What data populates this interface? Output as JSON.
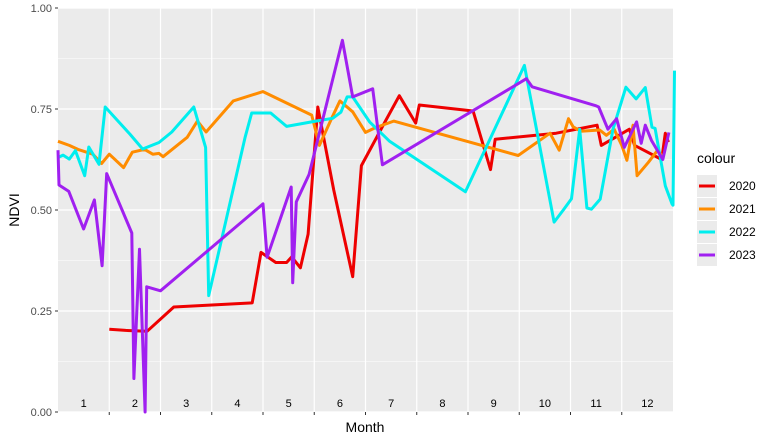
{
  "chart_data": {
    "type": "line",
    "xlabel": "Month",
    "ylabel": "NDVI",
    "legend_title": "colour",
    "legend_position": "right",
    "grid": true,
    "xlim": [
      0.5,
      12.5
    ],
    "ylim": [
      0,
      1
    ],
    "y_ticks": [
      "0.00",
      "0.25",
      "0.50",
      "0.75",
      "1.00"
    ],
    "y_tick_values": [
      0,
      0.25,
      0.5,
      0.75,
      1.0
    ],
    "month_labels": [
      "1",
      "2",
      "3",
      "4",
      "5",
      "6",
      "7",
      "8",
      "9",
      "10",
      "11",
      "12"
    ],
    "series": [
      {
        "name": "2020",
        "color": "#ee0000",
        "points": [
          [
            1.5,
            0.205
          ],
          [
            1.82,
            0.202
          ],
          [
            2.24,
            0.2
          ],
          [
            2.76,
            0.26
          ],
          [
            4.29,
            0.27
          ],
          [
            4.46,
            0.395
          ],
          [
            4.75,
            0.37
          ],
          [
            4.96,
            0.37
          ],
          [
            5.06,
            0.384
          ],
          [
            5.23,
            0.357
          ],
          [
            5.38,
            0.44
          ],
          [
            5.57,
            0.755
          ],
          [
            5.88,
            0.55
          ],
          [
            6.25,
            0.335
          ],
          [
            6.42,
            0.61
          ],
          [
            6.88,
            0.718
          ],
          [
            7.16,
            0.783
          ],
          [
            7.48,
            0.715
          ],
          [
            7.55,
            0.76
          ],
          [
            8.6,
            0.745
          ],
          [
            8.94,
            0.6
          ],
          [
            9.03,
            0.675
          ],
          [
            10.22,
            0.69
          ],
          [
            11.02,
            0.71
          ],
          [
            11.1,
            0.66
          ],
          [
            11.65,
            0.7
          ],
          [
            11.75,
            0.66
          ],
          [
            12.28,
            0.625
          ],
          [
            12.35,
            0.69
          ],
          [
            12.41,
            0.668
          ]
        ]
      },
      {
        "name": "2021",
        "color": "#ff8c00",
        "points": [
          [
            0.5,
            0.67
          ],
          [
            0.72,
            0.66
          ],
          [
            0.89,
            0.65
          ],
          [
            1.18,
            0.638
          ],
          [
            1.35,
            0.615
          ],
          [
            1.5,
            0.638
          ],
          [
            1.78,
            0.605
          ],
          [
            1.95,
            0.643
          ],
          [
            2.19,
            0.65
          ],
          [
            2.35,
            0.638
          ],
          [
            2.47,
            0.64
          ],
          [
            2.55,
            0.632
          ],
          [
            3.02,
            0.68
          ],
          [
            3.22,
            0.72
          ],
          [
            3.39,
            0.693
          ],
          [
            3.92,
            0.77
          ],
          [
            4.5,
            0.793
          ],
          [
            5.45,
            0.735
          ],
          [
            5.6,
            0.66
          ],
          [
            5.85,
            0.73
          ],
          [
            6.0,
            0.77
          ],
          [
            6.25,
            0.743
          ],
          [
            6.5,
            0.692
          ],
          [
            6.68,
            0.703
          ],
          [
            7.05,
            0.72
          ],
          [
            9.48,
            0.635
          ],
          [
            10.1,
            0.69
          ],
          [
            10.28,
            0.648
          ],
          [
            10.46,
            0.726
          ],
          [
            10.55,
            0.706
          ],
          [
            10.7,
            0.695
          ],
          [
            11.07,
            0.698
          ],
          [
            11.2,
            0.685
          ],
          [
            11.35,
            0.7
          ],
          [
            11.5,
            0.66
          ],
          [
            11.6,
            0.623
          ],
          [
            11.72,
            0.71
          ],
          [
            11.8,
            0.585
          ],
          [
            12.02,
            0.618
          ],
          [
            12.2,
            0.648
          ],
          [
            12.3,
            0.632
          ]
        ]
      },
      {
        "name": "2022",
        "color": "#00eeee",
        "points": [
          [
            0.5,
            0.63
          ],
          [
            0.6,
            0.636
          ],
          [
            0.72,
            0.626
          ],
          [
            0.84,
            0.647
          ],
          [
            1.02,
            0.585
          ],
          [
            1.1,
            0.656
          ],
          [
            1.3,
            0.613
          ],
          [
            1.42,
            0.755
          ],
          [
            1.9,
            0.688
          ],
          [
            2.15,
            0.651
          ],
          [
            2.47,
            0.667
          ],
          [
            2.72,
            0.693
          ],
          [
            3.15,
            0.755
          ],
          [
            3.38,
            0.655
          ],
          [
            3.44,
            0.288
          ],
          [
            4.15,
            0.68
          ],
          [
            4.28,
            0.74
          ],
          [
            4.65,
            0.74
          ],
          [
            4.96,
            0.707
          ],
          [
            5.53,
            0.72
          ],
          [
            5.86,
            0.727
          ],
          [
            6.02,
            0.742
          ],
          [
            6.14,
            0.78
          ],
          [
            6.25,
            0.78
          ],
          [
            6.58,
            0.718
          ],
          [
            6.97,
            0.67
          ],
          [
            8.45,
            0.545
          ],
          [
            9.6,
            0.858
          ],
          [
            10.18,
            0.47
          ],
          [
            10.36,
            0.5
          ],
          [
            10.52,
            0.528
          ],
          [
            10.68,
            0.7
          ],
          [
            10.82,
            0.505
          ],
          [
            10.91,
            0.502
          ],
          [
            11.08,
            0.527
          ],
          [
            11.33,
            0.7
          ],
          [
            11.58,
            0.804
          ],
          [
            11.78,
            0.775
          ],
          [
            11.96,
            0.803
          ],
          [
            12.09,
            0.705
          ],
          [
            12.15,
            0.702
          ],
          [
            12.35,
            0.56
          ],
          [
            12.48,
            0.515
          ],
          [
            12.5,
            0.512
          ],
          [
            12.53,
            0.845
          ]
        ]
      },
      {
        "name": "2023",
        "color": "#a020f0",
        "points": [
          [
            0.5,
            0.648
          ],
          [
            0.52,
            0.562
          ],
          [
            0.71,
            0.546
          ],
          [
            1.0,
            0.453
          ],
          [
            1.21,
            0.525
          ],
          [
            1.36,
            0.362
          ],
          [
            1.45,
            0.59
          ],
          [
            1.94,
            0.443
          ],
          [
            1.98,
            0.083
          ],
          [
            2.09,
            0.403
          ],
          [
            2.2,
            0.0
          ],
          [
            2.23,
            0.31
          ],
          [
            2.5,
            0.3
          ],
          [
            4.5,
            0.515
          ],
          [
            4.58,
            0.383
          ],
          [
            5.05,
            0.557
          ],
          [
            5.08,
            0.32
          ],
          [
            5.15,
            0.52
          ],
          [
            5.4,
            0.588
          ],
          [
            6.05,
            0.92
          ],
          [
            6.25,
            0.78
          ],
          [
            6.64,
            0.8
          ],
          [
            6.83,
            0.612
          ],
          [
            9.64,
            0.825
          ],
          [
            9.75,
            0.805
          ],
          [
            11.0,
            0.758
          ],
          [
            11.05,
            0.755
          ],
          [
            11.23,
            0.7
          ],
          [
            11.4,
            0.726
          ],
          [
            11.55,
            0.655
          ],
          [
            11.79,
            0.718
          ],
          [
            11.88,
            0.665
          ],
          [
            11.96,
            0.71
          ],
          [
            12.08,
            0.672
          ],
          [
            12.3,
            0.625
          ],
          [
            12.42,
            0.692
          ]
        ]
      }
    ]
  }
}
